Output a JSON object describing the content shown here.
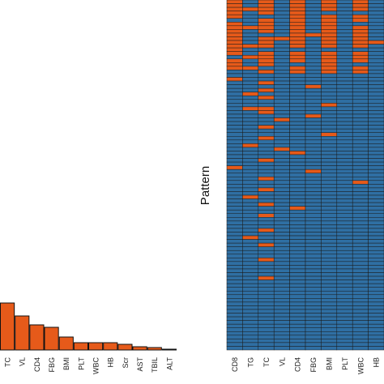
{
  "chart_data": [
    {
      "type": "bar",
      "title": "",
      "xlabel": "",
      "ylabel": "",
      "categories": [
        "TC",
        "VL",
        "CD4",
        "FBG",
        "BMI",
        "PLT",
        "WBC",
        "HB",
        "Scr",
        "AST",
        "TBIL",
        "ALT"
      ],
      "values": [
        58,
        42,
        31,
        28,
        16,
        9,
        9,
        9,
        7,
        4,
        3,
        1
      ],
      "ylim": [
        0,
        100
      ],
      "grid": false
    },
    {
      "type": "heatmap",
      "title": "",
      "ylabel": "Pattern",
      "columns": [
        "CD8",
        "TG",
        "TC",
        "VL",
        "CD4",
        "FBG",
        "BMI",
        "PLT",
        "WBC",
        "HB"
      ],
      "n_patterns": 95,
      "legend": "none",
      "pattern_matrix": [
        [
          0,
          1,
          0,
          1,
          0,
          1,
          0,
          1,
          0,
          1
        ],
        [
          0,
          1,
          0,
          1,
          0,
          1,
          0,
          1,
          0,
          1
        ],
        [
          0,
          0,
          0,
          1,
          0,
          1,
          0,
          1,
          0,
          1
        ],
        [
          0,
          1,
          0,
          1,
          0,
          1,
          1,
          1,
          1,
          1
        ],
        [
          0,
          1,
          1,
          1,
          0,
          1,
          0,
          1,
          0,
          1
        ],
        [
          1,
          1,
          0,
          1,
          0,
          1,
          0,
          1,
          0,
          1
        ],
        [
          0,
          1,
          0,
          1,
          0,
          1,
          0,
          1,
          1,
          1
        ],
        [
          0,
          0,
          0,
          1,
          0,
          1,
          0,
          1,
          0,
          1
        ],
        [
          0,
          1,
          0,
          1,
          0,
          1,
          0,
          1,
          0,
          1
        ],
        [
          0,
          1,
          1,
          1,
          0,
          0,
          0,
          1,
          0,
          1
        ],
        [
          0,
          1,
          0,
          0,
          0,
          1,
          0,
          1,
          0,
          1
        ],
        [
          0,
          1,
          0,
          1,
          0,
          1,
          0,
          1,
          0,
          0
        ],
        [
          0,
          0,
          0,
          1,
          0,
          1,
          0,
          1,
          0,
          1
        ],
        [
          0,
          1,
          1,
          1,
          1,
          1,
          1,
          1,
          1,
          1
        ],
        [
          0,
          1,
          0,
          1,
          0,
          1,
          0,
          1,
          0,
          1
        ],
        [
          1,
          0,
          0,
          1,
          0,
          1,
          0,
          1,
          0,
          1
        ],
        [
          0,
          1,
          0,
          1,
          0,
          1,
          0,
          1,
          0,
          1
        ],
        [
          0,
          1,
          0,
          1,
          1,
          1,
          0,
          1,
          1,
          1
        ],
        [
          0,
          0,
          1,
          1,
          0,
          1,
          0,
          1,
          0,
          1
        ],
        [
          1,
          1,
          0,
          1,
          0,
          1,
          0,
          1,
          0,
          1
        ],
        [
          1,
          1,
          1,
          1,
          1,
          1,
          1,
          1,
          1,
          1
        ],
        [
          0,
          1,
          1,
          1,
          1,
          1,
          1,
          1,
          1,
          1
        ],
        [
          1,
          1,
          0,
          1,
          1,
          1,
          1,
          1,
          1,
          1
        ],
        [
          1,
          1,
          1,
          1,
          1,
          0,
          1,
          1,
          1,
          1
        ],
        [
          1,
          1,
          0,
          1,
          1,
          1,
          1,
          1,
          1,
          1
        ],
        [
          1,
          0,
          1,
          1,
          1,
          1,
          1,
          1,
          1,
          1
        ],
        [
          1,
          1,
          0,
          1,
          1,
          1,
          1,
          1,
          1,
          1
        ],
        [
          1,
          1,
          1,
          1,
          1,
          1,
          1,
          1,
          1,
          1
        ],
        [
          1,
          1,
          1,
          1,
          1,
          1,
          0,
          1,
          1,
          1
        ],
        [
          1,
          0,
          0,
          1,
          1,
          1,
          1,
          1,
          1,
          1
        ],
        [
          1,
          1,
          0,
          1,
          1,
          1,
          1,
          1,
          1,
          1
        ],
        [
          1,
          1,
          1,
          1,
          1,
          0,
          1,
          1,
          1,
          1
        ],
        [
          1,
          1,
          1,
          0,
          1,
          1,
          1,
          1,
          1,
          1
        ],
        [
          1,
          1,
          1,
          1,
          1,
          1,
          1,
          1,
          1,
          1
        ],
        [
          1,
          1,
          0,
          1,
          1,
          1,
          1,
          1,
          1,
          1
        ],
        [
          1,
          1,
          1,
          1,
          1,
          1,
          1,
          1,
          1,
          1
        ],
        [
          1,
          1,
          1,
          1,
          1,
          1,
          0,
          1,
          1,
          1
        ],
        [
          1,
          1,
          0,
          1,
          1,
          1,
          1,
          1,
          1,
          1
        ],
        [
          1,
          1,
          1,
          1,
          1,
          1,
          1,
          1,
          1,
          1
        ],
        [
          1,
          0,
          1,
          1,
          1,
          1,
          1,
          1,
          1,
          1
        ],
        [
          1,
          1,
          1,
          0,
          1,
          1,
          1,
          1,
          1,
          1
        ],
        [
          1,
          1,
          1,
          1,
          0,
          1,
          1,
          1,
          1,
          1
        ],
        [
          1,
          1,
          1,
          1,
          1,
          1,
          1,
          1,
          1,
          1
        ],
        [
          1,
          1,
          0,
          1,
          1,
          1,
          1,
          1,
          1,
          1
        ],
        [
          1,
          1,
          1,
          1,
          1,
          1,
          1,
          1,
          1,
          1
        ],
        [
          0,
          1,
          1,
          1,
          1,
          1,
          1,
          1,
          1,
          1
        ],
        [
          1,
          1,
          1,
          1,
          1,
          0,
          1,
          1,
          1,
          1
        ],
        [
          1,
          1,
          1,
          1,
          1,
          1,
          1,
          1,
          1,
          1
        ],
        [
          1,
          1,
          0,
          1,
          1,
          1,
          1,
          1,
          1,
          1
        ],
        [
          1,
          1,
          1,
          1,
          1,
          1,
          1,
          1,
          0,
          1
        ],
        [
          1,
          1,
          1,
          1,
          1,
          1,
          1,
          1,
          1,
          1
        ],
        [
          1,
          1,
          0,
          1,
          1,
          1,
          1,
          1,
          1,
          1
        ],
        [
          1,
          1,
          1,
          1,
          1,
          1,
          1,
          1,
          1,
          1
        ],
        [
          1,
          0,
          1,
          1,
          1,
          1,
          1,
          1,
          1,
          1
        ],
        [
          1,
          1,
          1,
          1,
          1,
          1,
          1,
          1,
          1,
          1
        ],
        [
          1,
          1,
          0,
          1,
          1,
          1,
          1,
          1,
          1,
          1
        ],
        [
          1,
          1,
          1,
          1,
          0,
          1,
          1,
          1,
          1,
          1
        ],
        [
          1,
          1,
          1,
          1,
          1,
          1,
          1,
          1,
          1,
          1
        ],
        [
          1,
          1,
          0,
          1,
          1,
          1,
          1,
          1,
          1,
          1
        ],
        [
          1,
          1,
          1,
          1,
          1,
          1,
          1,
          1,
          1,
          1
        ],
        [
          1,
          1,
          1,
          1,
          1,
          1,
          1,
          1,
          1,
          1
        ],
        [
          1,
          1,
          1,
          1,
          1,
          1,
          1,
          1,
          1,
          1
        ],
        [
          1,
          1,
          0,
          1,
          1,
          1,
          1,
          1,
          1,
          1
        ],
        [
          1,
          1,
          1,
          1,
          1,
          1,
          1,
          1,
          1,
          1
        ],
        [
          1,
          0,
          1,
          1,
          1,
          1,
          1,
          1,
          1,
          1
        ],
        [
          1,
          1,
          1,
          1,
          1,
          1,
          1,
          1,
          1,
          1
        ],
        [
          1,
          1,
          0,
          1,
          1,
          1,
          1,
          1,
          1,
          1
        ],
        [
          1,
          1,
          1,
          1,
          1,
          1,
          1,
          1,
          1,
          1
        ],
        [
          1,
          1,
          1,
          1,
          1,
          1,
          1,
          1,
          1,
          1
        ],
        [
          1,
          1,
          1,
          1,
          1,
          1,
          1,
          1,
          1,
          1
        ],
        [
          1,
          1,
          0,
          1,
          1,
          1,
          1,
          1,
          1,
          1
        ],
        [
          1,
          1,
          1,
          1,
          1,
          1,
          1,
          1,
          1,
          1
        ],
        [
          1,
          1,
          1,
          1,
          1,
          1,
          1,
          1,
          1,
          1
        ],
        [
          1,
          1,
          1,
          1,
          1,
          1,
          1,
          1,
          1,
          1
        ],
        [
          1,
          1,
          1,
          1,
          1,
          1,
          1,
          1,
          1,
          1
        ],
        [
          1,
          1,
          0,
          1,
          1,
          1,
          1,
          1,
          1,
          1
        ],
        [
          1,
          1,
          1,
          1,
          1,
          1,
          1,
          1,
          1,
          1
        ],
        [
          1,
          1,
          1,
          1,
          1,
          1,
          1,
          1,
          1,
          1
        ],
        [
          1,
          1,
          1,
          1,
          1,
          1,
          1,
          1,
          1,
          1
        ],
        [
          1,
          1,
          1,
          1,
          1,
          1,
          1,
          1,
          1,
          1
        ],
        [
          1,
          1,
          1,
          1,
          1,
          1,
          1,
          1,
          1,
          1
        ],
        [
          1,
          1,
          1,
          1,
          1,
          1,
          1,
          1,
          1,
          1
        ],
        [
          1,
          1,
          1,
          1,
          1,
          1,
          1,
          1,
          1,
          1
        ],
        [
          1,
          1,
          1,
          1,
          1,
          1,
          1,
          1,
          1,
          1
        ],
        [
          1,
          1,
          1,
          1,
          1,
          1,
          1,
          1,
          1,
          1
        ],
        [
          1,
          1,
          1,
          1,
          1,
          1,
          1,
          1,
          1,
          1
        ],
        [
          1,
          1,
          1,
          1,
          1,
          1,
          1,
          1,
          1,
          1
        ],
        [
          1,
          1,
          1,
          1,
          1,
          1,
          1,
          1,
          1,
          1
        ],
        [
          1,
          1,
          1,
          1,
          1,
          1,
          1,
          1,
          1,
          1
        ],
        [
          1,
          1,
          1,
          1,
          1,
          1,
          1,
          1,
          1,
          1
        ],
        [
          1,
          1,
          1,
          1,
          1,
          1,
          1,
          1,
          1,
          1
        ],
        [
          1,
          1,
          1,
          1,
          1,
          1,
          1,
          1,
          1,
          1
        ],
        [
          1,
          1,
          1,
          1,
          1,
          1,
          1,
          1,
          1,
          1
        ],
        [
          1,
          1,
          1,
          1,
          1,
          1,
          1,
          1,
          1,
          1
        ],
        [
          1,
          1,
          1,
          1,
          1,
          1,
          1,
          1,
          1,
          1
        ]
      ]
    }
  ],
  "colors": {
    "observed": "#2f6fa3",
    "missing": "#e65a1a",
    "bar_fill": "#e65a1a",
    "outline": "#111111",
    "background": "#ffffff"
  }
}
